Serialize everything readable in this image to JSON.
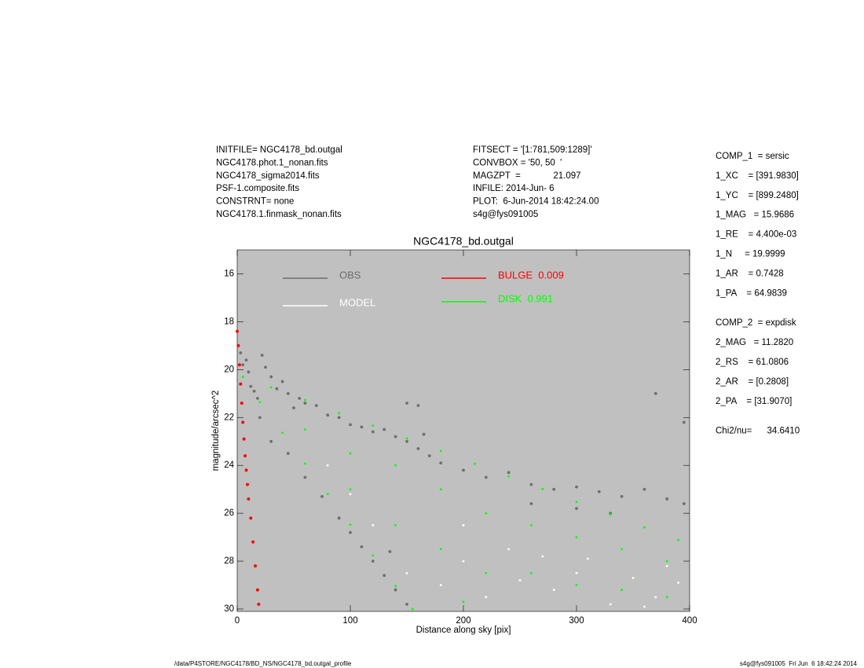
{
  "header": {
    "left": [
      "INITFILE= NGC4178_bd.outgal",
      "NGC4178.phot.1_nonan.fits",
      "NGC4178_sigma2014.fits",
      "PSF-1.composite.fits",
      "CONSTRNT= none",
      "NGC4178.1.finmask_nonan.fits"
    ],
    "middle": [
      "FITSECT = '[1:781,509:1289]'",
      "CONVBOX = '50, 50  '",
      "MAGZPT  =             21.097",
      "INFILE: 2014-Jun- 6",
      "PLOT:  6-Jun-2014 18:42:24.00",
      "s4g@fys091005"
    ]
  },
  "params": [
    [
      "COMP_1  = sersic",
      "1_XC    = [391.9830]",
      "1_YC    = [899.2480]",
      "1_MAG   = 15.9686",
      "1_RE    = 4.400e-03",
      "1_N     = 19.9999",
      "1_AR    = 0.7428",
      "1_PA    = 64.9839"
    ],
    [
      "COMP_2  = expdisk",
      "2_MAG   = 11.2820",
      "2_RS    = 61.0806",
      "2_AR    = [0.2808]",
      "2_PA    = [31.9070]"
    ],
    [
      "Chi2/nu=      34.6410"
    ]
  ],
  "footer": {
    "left": "/data/P4STORE/NGC4178/BD_NS/NGC4178_bd.outgal_profile",
    "right": "s4g@fys091005  Fri Jun  6 18:42:24 2014"
  },
  "chart_data": {
    "type": "scatter",
    "title": "NGC4178_bd.outgal",
    "xlabel": "Distance along sky [pix]",
    "ylabel": "magnitude/arcsec^2",
    "xlim": [
      0,
      400
    ],
    "ylim": [
      15,
      30.1
    ],
    "y_reversed": true,
    "xticks": [
      0,
      100,
      200,
      300,
      400
    ],
    "yticks": [
      16,
      18,
      20,
      22,
      24,
      26,
      28,
      30
    ],
    "background": "#c0c0c0",
    "series": [
      {
        "name": "OBS",
        "color": "#6e6e6e",
        "x": [
          3,
          5,
          8,
          10,
          12,
          15,
          18,
          22,
          25,
          30,
          35,
          40,
          45,
          50,
          55,
          60,
          70,
          80,
          90,
          100,
          110,
          120,
          130,
          140,
          150,
          160,
          170,
          180,
          200,
          220,
          240,
          260,
          280,
          300,
          320,
          340,
          360,
          380,
          395,
          370,
          395,
          300,
          330,
          260,
          20,
          30,
          45,
          60,
          75,
          90,
          100,
          110,
          120,
          130,
          140,
          150,
          135,
          160,
          165,
          150
        ],
        "values": [
          19.3,
          19.8,
          19.6,
          20.1,
          20.7,
          20.9,
          21.2,
          19.4,
          19.9,
          20.3,
          20.8,
          20.5,
          21.0,
          21.6,
          21.2,
          21.4,
          21.5,
          21.9,
          22.0,
          22.3,
          22.4,
          22.6,
          22.5,
          22.8,
          23.0,
          23.3,
          23.6,
          23.9,
          24.2,
          24.5,
          24.3,
          24.8,
          25.0,
          24.9,
          25.1,
          25.3,
          25.0,
          25.4,
          25.6,
          21.0,
          22.2,
          25.8,
          26.0,
          25.6,
          22.0,
          23.0,
          23.5,
          24.5,
          25.3,
          26.2,
          26.8,
          27.4,
          28.0,
          28.6,
          29.2,
          29.8,
          27.6,
          21.5,
          22.7,
          21.4
        ]
      },
      {
        "name": "DISK  0.991",
        "color": "#00ff00",
        "x": [
          5,
          30,
          60,
          90,
          120,
          150,
          180,
          210,
          240,
          270,
          300,
          330,
          360,
          390,
          20,
          40,
          60,
          80,
          100,
          120,
          140,
          155,
          60,
          100,
          100,
          140,
          140,
          180,
          180,
          220,
          220,
          260,
          260,
          300,
          300,
          340,
          340,
          380,
          380,
          200
        ],
        "values": [
          20.3,
          20.74,
          21.27,
          21.81,
          22.34,
          22.87,
          23.4,
          23.93,
          24.46,
          24.99,
          25.53,
          26.06,
          26.59,
          27.12,
          21.36,
          22.64,
          23.92,
          25.2,
          26.48,
          27.76,
          29.04,
          30.0,
          22.5,
          23.5,
          25.0,
          24.0,
          26.5,
          25.0,
          27.5,
          26.0,
          28.5,
          26.5,
          28.5,
          27.0,
          29.0,
          27.5,
          29.2,
          28.0,
          29.5,
          29.7
        ]
      },
      {
        "name": "MODEL",
        "color": "#ffffff",
        "x": [
          150,
          180,
          200,
          220,
          250,
          280,
          300,
          330,
          350,
          370,
          390,
          240,
          270,
          310,
          360,
          120,
          100,
          80,
          200,
          380
        ],
        "values": [
          28.5,
          29.0,
          28.0,
          29.5,
          28.8,
          29.2,
          28.5,
          29.8,
          28.7,
          29.5,
          28.9,
          27.5,
          27.8,
          27.9,
          29.9,
          26.5,
          25.2,
          24.0,
          26.5,
          28.2
        ]
      },
      {
        "name": "BULGE  0.009",
        "color": "#ff0000",
        "x": [
          0,
          1,
          2,
          3,
          4,
          5,
          6,
          7,
          8,
          9,
          10,
          12,
          14,
          16,
          18,
          19
        ],
        "values": [
          18.4,
          19.0,
          19.8,
          20.6,
          21.4,
          22.2,
          22.9,
          23.6,
          24.2,
          24.8,
          25.4,
          26.2,
          27.2,
          28.2,
          29.2,
          29.8
        ]
      }
    ]
  }
}
